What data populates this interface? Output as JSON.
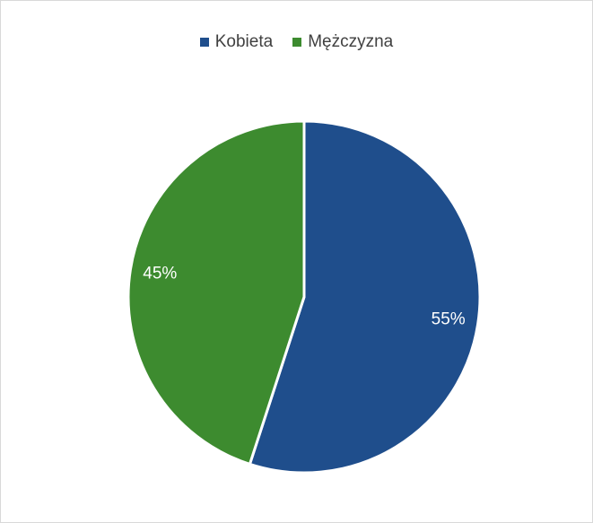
{
  "chart_data": {
    "type": "pie",
    "title": "",
    "categories": [
      "Kobieta",
      "Mężczyzna"
    ],
    "values": [
      55,
      45
    ],
    "data_labels": [
      "55%",
      "45%"
    ],
    "colors": [
      "#1f4e8c",
      "#3d8b2f"
    ],
    "legend_position": "top",
    "start_angle": "12 o'clock, clockwise"
  }
}
